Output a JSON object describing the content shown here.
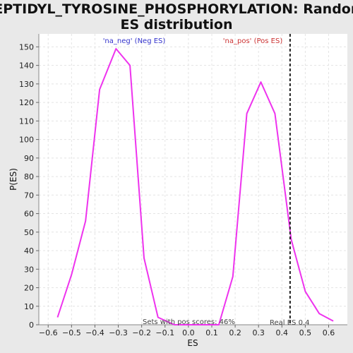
{
  "chart_data": {
    "type": "line",
    "title_line1": "PEPTIDYL_TYROSINE_PHOSPHORYLATION: Random",
    "title_line2": "ES distribution",
    "xlabel": "ES",
    "ylabel": "P(ES)",
    "xlim": [
      -0.64,
      0.68
    ],
    "ylim": [
      0,
      157
    ],
    "xticks": [
      -0.6,
      -0.5,
      -0.4,
      -0.3,
      -0.2,
      -0.1,
      0.0,
      0.1,
      0.2,
      0.3,
      0.4,
      0.5,
      0.6
    ],
    "yticks": [
      0,
      10,
      20,
      30,
      40,
      50,
      60,
      70,
      80,
      90,
      100,
      110,
      120,
      130,
      140,
      150
    ],
    "grid": true,
    "series": [
      {
        "name": "'na_neg' (Neg ES)",
        "color": "#ee33ee",
        "x": [
          -0.56,
          -0.5,
          -0.44,
          -0.38,
          -0.31,
          -0.25,
          -0.19,
          -0.13,
          -0.06,
          0.0,
          0.06,
          0.13,
          0.19,
          0.25,
          0.31,
          0.37,
          0.44,
          0.5,
          0.56,
          0.62
        ],
        "y": [
          4,
          27,
          56,
          127,
          149,
          140,
          36,
          4,
          0,
          0,
          0,
          0,
          26,
          114,
          131,
          114,
          46,
          18,
          6,
          2
        ]
      }
    ],
    "legend_labels": [
      {
        "text": "'na_neg' (Neg ES)",
        "color": "#3333cc"
      },
      {
        "text": "'na_pos' (Pos ES)",
        "color": "#cc3333"
      }
    ],
    "real_es": {
      "value": 0.435,
      "label": "Real ES 0.4"
    },
    "footer_note": "Sets with pos scores: 46%"
  }
}
